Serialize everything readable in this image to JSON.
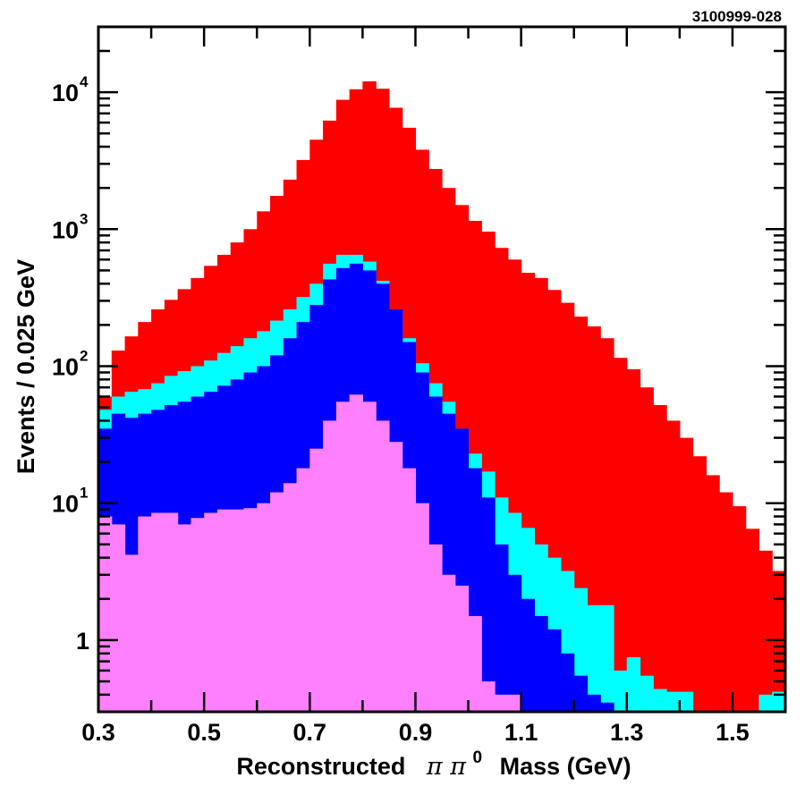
{
  "figure_id": "3100999-028",
  "chart_data": {
    "type": "histogram",
    "y_scale": "log",
    "stacked_overlay": true,
    "x_range": [
      0.3,
      1.6
    ],
    "y_range": [
      0.3,
      30000
    ],
    "bin_width": 0.025,
    "bin_starts": [
      0.3,
      0.325,
      0.35,
      0.375,
      0.4,
      0.425,
      0.45,
      0.475,
      0.5,
      0.525,
      0.55,
      0.575,
      0.6,
      0.625,
      0.65,
      0.675,
      0.7,
      0.725,
      0.75,
      0.775,
      0.8,
      0.825,
      0.85,
      0.875,
      0.9,
      0.925,
      0.95,
      0.975,
      1.0,
      1.025,
      1.05,
      1.075,
      1.1,
      1.125,
      1.15,
      1.175,
      1.2,
      1.225,
      1.25,
      1.275,
      1.3,
      1.325,
      1.35,
      1.375,
      1.4,
      1.425,
      1.45,
      1.475,
      1.5,
      1.525,
      1.55,
      1.575
    ],
    "xlabel_main": "Reconstructed",
    "xlabel_symbol": "π π",
    "xlabel_sup": "0",
    "xlabel_tail": "Mass (GeV)",
    "ylabel": "Events / 0.025 GeV",
    "x_ticks": [
      {
        "v": 0.3,
        "label": "0.3"
      },
      {
        "v": 0.5,
        "label": "0.5"
      },
      {
        "v": 0.7,
        "label": "0.7"
      },
      {
        "v": 0.9,
        "label": "0.9"
      },
      {
        "v": 1.1,
        "label": "1.1"
      },
      {
        "v": 1.3,
        "label": "1.3"
      },
      {
        "v": 1.5,
        "label": "1.5"
      }
    ],
    "x_minor_step": 0.1,
    "y_ticks": [
      {
        "v": 1,
        "label": "1",
        "base": "",
        "exp": ""
      },
      {
        "v": 10,
        "label": "",
        "base": "10",
        "exp": "1"
      },
      {
        "v": 100,
        "label": "",
        "base": "10",
        "exp": "2"
      },
      {
        "v": 1000,
        "label": "",
        "base": "10",
        "exp": "3"
      },
      {
        "v": 10000,
        "label": "",
        "base": "10",
        "exp": "4"
      }
    ],
    "series": [
      {
        "color": "#ff0000",
        "values": [
          60,
          130,
          165,
          210,
          260,
          305,
          365,
          440,
          540,
          650,
          800,
          1000,
          1350,
          1750,
          2300,
          3200,
          4500,
          6200,
          8800,
          10500,
          12000,
          10600,
          7700,
          5500,
          3800,
          2750,
          2000,
          1500,
          1150,
          960,
          730,
          600,
          480,
          440,
          360,
          290,
          230,
          195,
          160,
          115,
          95,
          70,
          52,
          40,
          30,
          22,
          16,
          12,
          9.5,
          6.5,
          4.5,
          3.2
        ]
      },
      {
        "color": "#00ffff",
        "values": [
          48,
          60,
          65,
          68,
          75,
          85,
          92,
          100,
          110,
          125,
          140,
          160,
          180,
          215,
          260,
          320,
          400,
          560,
          650,
          650,
          580,
          420,
          260,
          160,
          105,
          75,
          55,
          35,
          23,
          17,
          11,
          8.5,
          6.6,
          5,
          4,
          3.2,
          2.4,
          1.8,
          1.8,
          0.6,
          0.75,
          0.55,
          0.44,
          0.42,
          0.42,
          0.3,
          0.3,
          0.3,
          0.3,
          0.3,
          0.4,
          0.42
        ]
      },
      {
        "color": "#0000ff",
        "values": [
          35,
          45,
          42,
          45,
          48,
          52,
          55,
          60,
          65,
          72,
          80,
          90,
          100,
          120,
          160,
          210,
          280,
          430,
          520,
          560,
          500,
          400,
          260,
          150,
          90,
          60,
          45,
          35,
          18,
          11,
          5,
          3,
          2,
          1.5,
          1.2,
          0.8,
          0.55,
          0.4,
          0.35,
          0.3,
          0.3,
          0.3,
          0.3,
          0.3,
          0.3,
          0.3,
          0.3,
          0.3,
          0.3,
          0.3,
          0.3,
          0.3
        ]
      },
      {
        "color": "#ff80ff",
        "values": [
          8,
          7,
          4.2,
          8,
          8.5,
          8.5,
          7,
          7.8,
          8.5,
          9,
          9,
          9.2,
          10,
          12,
          14,
          18,
          25,
          40,
          55,
          62,
          55,
          40,
          28,
          18,
          10,
          5,
          3,
          2.5,
          1.5,
          0.5,
          0.4,
          0.4,
          0.3,
          0.3,
          0.3,
          0.3,
          0.3,
          0.3,
          0.3,
          0.3,
          0.3,
          0.3,
          0.3,
          0.3,
          0.3,
          0.3,
          0.3,
          0.3,
          0.3,
          0.3,
          0.3,
          0.3
        ]
      }
    ]
  }
}
